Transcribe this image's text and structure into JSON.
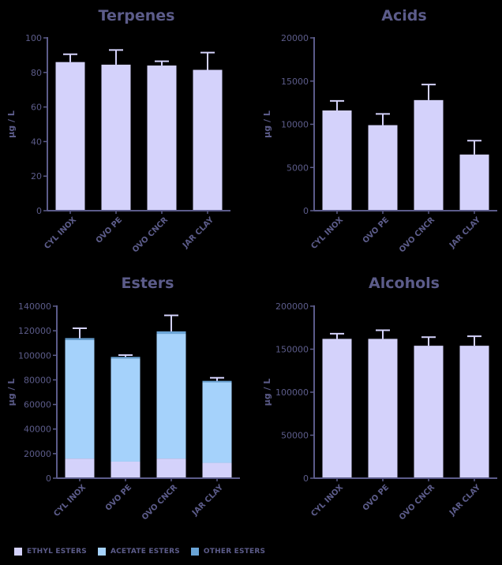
{
  "colors": {
    "axis": "#5c5c8a",
    "text": "#5c5c8a",
    "bar": "#d4d2fb",
    "ethyl": "#d4d2fb",
    "acetate": "#a5d2fb",
    "other": "#6aa4d6",
    "error": "#d4d2fb"
  },
  "legend": [
    {
      "label": "ETHYL ESTERS",
      "color": "#d4d2fb"
    },
    {
      "label": "ACETATE ESTERS",
      "color": "#a5d2fb"
    },
    {
      "label": "OTHER ESTERS",
      "color": "#6aa4d6"
    }
  ],
  "chart_data": [
    {
      "type": "bar",
      "title": "Terpenes",
      "ylabel": "µg / L",
      "categories": [
        "CYL INOX",
        "OVO PE",
        "OVO CNCR",
        "JAR CLAY"
      ],
      "values": [
        86,
        84.5,
        84,
        81.5
      ],
      "errors": [
        4.5,
        8.5,
        2.5,
        10
      ],
      "ylim": [
        0,
        100
      ],
      "yticks": [
        0,
        20,
        40,
        60,
        80,
        100
      ]
    },
    {
      "type": "bar",
      "title": "Acids",
      "ylabel": "µg / L",
      "categories": [
        "CYL INOX",
        "OVO PE",
        "OVO CNCR",
        "JAR CLAY"
      ],
      "values": [
        11600,
        9900,
        12800,
        6500
      ],
      "errors": [
        1100,
        1300,
        1800,
        1600
      ],
      "ylim": [
        0,
        20000
      ],
      "yticks": [
        0,
        5000,
        10000,
        15000,
        20000
      ]
    },
    {
      "type": "bar",
      "stacked": true,
      "title": "Esters",
      "ylabel": "µg / L",
      "categories": [
        "CYL INOX",
        "OVO PE",
        "OVO CNCR",
        "JAR CLAY"
      ],
      "series": [
        {
          "name": "ETHYL ESTERS",
          "values": [
            16000,
            13500,
            16000,
            12500
          ]
        },
        {
          "name": "ACETATE ESTERS",
          "values": [
            96500,
            84000,
            101500,
            65500
          ]
        },
        {
          "name": "OTHER ESTERS",
          "values": [
            1500,
            1200,
            2000,
            1200
          ]
        }
      ],
      "errors": [
        8000,
        1500,
        13000,
        2500
      ],
      "ylim": [
        0,
        140000
      ],
      "yticks": [
        0,
        20000,
        40000,
        60000,
        80000,
        100000,
        120000,
        140000
      ]
    },
    {
      "type": "bar",
      "title": "Alcohols",
      "ylabel": "µg / L",
      "categories": [
        "CYL INOX",
        "OVO PE",
        "OVO CNCR",
        "JAR CLAY"
      ],
      "values": [
        162000,
        162000,
        154000,
        154000
      ],
      "errors": [
        6000,
        10000,
        10000,
        11000
      ],
      "ylim": [
        0,
        200000
      ],
      "yticks": [
        0,
        50000,
        100000,
        150000,
        200000
      ]
    }
  ]
}
